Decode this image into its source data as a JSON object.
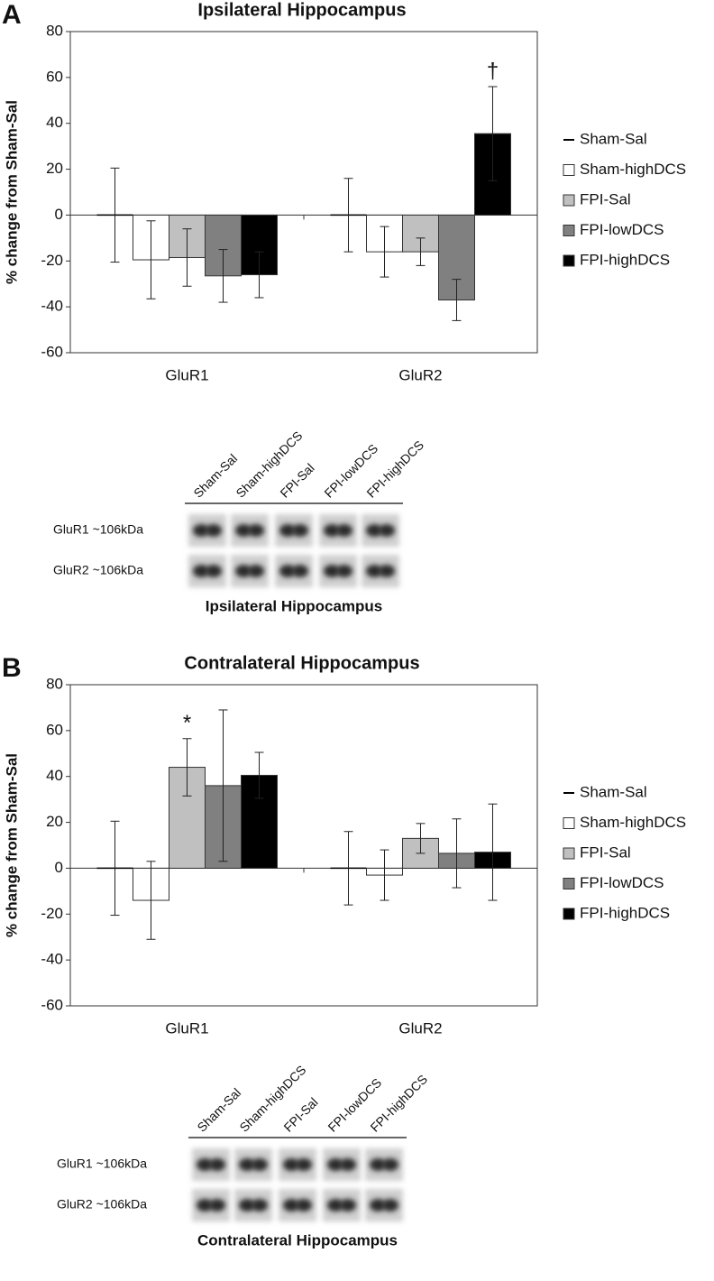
{
  "chart_data": [
    {
      "type": "bar",
      "panel": "A",
      "title": "Ipsilateral Hippocampus",
      "y_label": "% change from Sham-Sal",
      "categories": [
        "GluR1",
        "GluR2"
      ],
      "series": [
        {
          "name": "Sham-Sal",
          "color": "#000000",
          "marker": "line",
          "values": [
            0,
            0
          ],
          "errors": [
            20.5,
            16
          ]
        },
        {
          "name": "Sham-highDCS",
          "color": "#ffffff",
          "values": [
            -19.5,
            -16
          ],
          "errors": [
            17,
            11
          ]
        },
        {
          "name": "FPI-Sal",
          "color": "#c0c0c0",
          "values": [
            -18.5,
            -16
          ],
          "errors": [
            12.5,
            6
          ]
        },
        {
          "name": "FPI-lowDCS",
          "color": "#808080",
          "values": [
            -26.5,
            -37
          ],
          "errors": [
            11.5,
            9
          ]
        },
        {
          "name": "FPI-highDCS",
          "color": "#000000",
          "values": [
            -26,
            35.5
          ],
          "errors": [
            10,
            20.5
          ]
        }
      ],
      "annotations": [
        {
          "text": "†",
          "category": "GluR2",
          "series": "FPI-highDCS"
        }
      ],
      "ylim": [
        -60,
        80
      ],
      "yticks": [
        -60,
        -40,
        -20,
        0,
        20,
        40,
        60,
        80
      ],
      "grid": false,
      "legend": "right"
    },
    {
      "type": "bar",
      "panel": "B",
      "title": "Contralateral Hippocampus",
      "y_label": "% change from Sham-Sal",
      "categories": [
        "GluR1",
        "GluR2"
      ],
      "series": [
        {
          "name": "Sham-Sal",
          "color": "#000000",
          "marker": "line",
          "values": [
            0,
            0
          ],
          "errors": [
            20.5,
            16
          ]
        },
        {
          "name": "Sham-highDCS",
          "color": "#ffffff",
          "values": [
            -14,
            -3
          ],
          "errors": [
            17,
            11
          ]
        },
        {
          "name": "FPI-Sal",
          "color": "#c0c0c0",
          "values": [
            44,
            13
          ],
          "errors": [
            12.5,
            6.5
          ]
        },
        {
          "name": "FPI-lowDCS",
          "color": "#808080",
          "values": [
            36,
            6.5
          ],
          "errors": [
            33,
            15
          ]
        },
        {
          "name": "FPI-highDCS",
          "color": "#000000",
          "values": [
            40.5,
            7
          ],
          "errors": [
            10,
            21
          ]
        }
      ],
      "annotations": [
        {
          "text": "*",
          "category": "GluR1",
          "series": "FPI-Sal"
        }
      ],
      "ylim": [
        -60,
        80
      ],
      "yticks": [
        -60,
        -40,
        -20,
        0,
        20,
        40,
        60,
        80
      ],
      "grid": false,
      "legend": "right"
    }
  ],
  "blots": [
    {
      "lanes": [
        "Sham-Sal",
        "Sham-highDCS",
        "FPI-Sal",
        "FPI-lowDCS",
        "FPI-highDCS"
      ],
      "rows": [
        "GluR1 ~106kDa",
        "GluR2 ~106kDa"
      ],
      "caption": "Ipsilateral Hippocampus"
    },
    {
      "lanes": [
        "Sham-Sal",
        "Sham-highDCS",
        "FPI-Sal",
        "FPI-lowDCS",
        "FPI-highDCS"
      ],
      "rows": [
        "GluR1 ~106kDa",
        "GluR2 ~106kDa"
      ],
      "caption": "Contralateral Hippocampus"
    }
  ]
}
